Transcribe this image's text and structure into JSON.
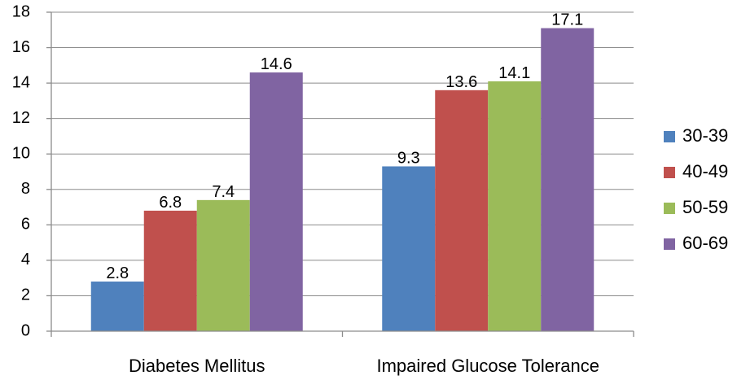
{
  "chart_data": {
    "type": "bar",
    "categories": [
      "Diabetes Mellitus",
      "Impaired Glucose Tolerance"
    ],
    "series": [
      {
        "name": "30-39",
        "values": [
          2.8,
          9.3
        ],
        "color": "#4f81bd"
      },
      {
        "name": "40-49",
        "values": [
          6.8,
          13.6
        ],
        "color": "#c0504d"
      },
      {
        "name": "50-59",
        "values": [
          7.4,
          14.1
        ],
        "color": "#9bbb59"
      },
      {
        "name": "60-69",
        "values": [
          14.6,
          17.1
        ],
        "color": "#8064a2"
      }
    ],
    "data_labels": [
      [
        "2.8",
        "9.3"
      ],
      [
        "6.8",
        "13.6"
      ],
      [
        "7.4",
        "14.1"
      ],
      [
        "14.6",
        "17.1"
      ]
    ],
    "y_ticks": [
      "0",
      "2",
      "4",
      "6",
      "8",
      "10",
      "12",
      "14",
      "16",
      "18"
    ],
    "ylim": [
      0,
      18
    ],
    "grid": true,
    "legend_position": "right"
  }
}
